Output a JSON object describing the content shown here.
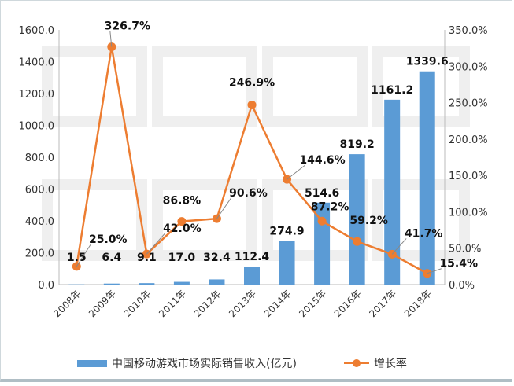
{
  "watermark": [
    "游戏工委",
    "伽马数据"
  ],
  "chart_data": {
    "type": "bar+line",
    "categories": [
      "2008年",
      "2009年",
      "2010年",
      "2011年",
      "2012年",
      "2013年",
      "2014年",
      "2015年",
      "2016年",
      "2017年",
      "2018年"
    ],
    "series": [
      {
        "name": "中国移动游戏市场实际销售收入(亿元)",
        "type": "bar",
        "axis": "left",
        "color": "#5b9bd5",
        "values": [
          1.5,
          6.4,
          9.1,
          17.0,
          32.4,
          112.4,
          274.9,
          514.6,
          819.2,
          1161.2,
          1339.6
        ],
        "labels": [
          "1.5",
          "6.4",
          "9.1",
          "17.0",
          "32.4",
          "112.4",
          "274.9",
          "514.6",
          "819.2",
          "1161.2",
          "1339.6"
        ]
      },
      {
        "name": "增长率",
        "type": "line",
        "axis": "right",
        "color": "#ed7d31",
        "values": [
          25.0,
          326.7,
          42.0,
          86.8,
          90.6,
          246.9,
          144.6,
          87.2,
          59.2,
          41.7,
          15.4
        ],
        "labels": [
          "25.0%",
          "326.7%",
          "42.0%",
          "86.8%",
          "90.6%",
          "246.9%",
          "144.6%",
          "87.2%",
          "59.2%",
          "41.7%",
          "15.4%"
        ]
      }
    ],
    "y_left": {
      "min": 0,
      "max": 1600,
      "ticks": [
        "0.0",
        "200.0",
        "400.0",
        "600.0",
        "800.0",
        "1000.0",
        "1200.0",
        "1400.0",
        "1600.0"
      ]
    },
    "y_right": {
      "min": 0,
      "max": 350,
      "ticks": [
        "0.0%",
        "50.0%",
        "100.0%",
        "150.0%",
        "200.0%",
        "250.0%",
        "300.0%",
        "350.0%"
      ]
    },
    "grid": false,
    "legend": "bottom"
  }
}
